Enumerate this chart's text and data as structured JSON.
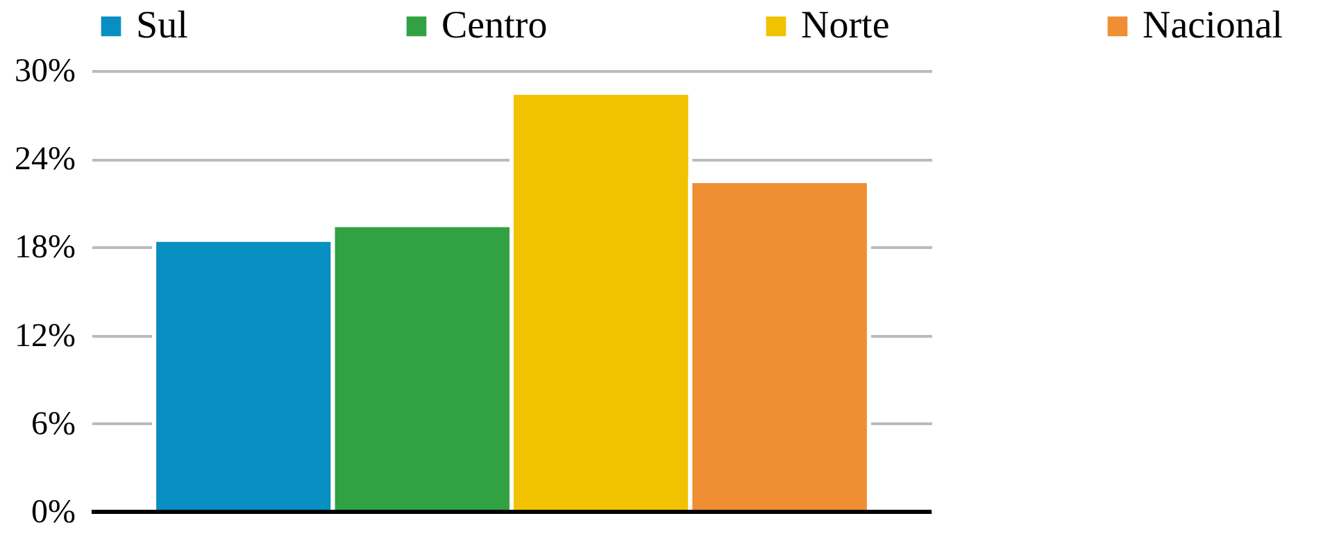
{
  "chart_data": {
    "type": "bar",
    "categories": [
      null
    ],
    "series": [
      {
        "name": "Sul",
        "color": "#088fc2",
        "values": [
          18.5
        ]
      },
      {
        "name": "Centro",
        "color": "#31a144",
        "values": [
          19.5
        ]
      },
      {
        "name": "Norte",
        "color": "#f1c200",
        "values": [
          28.5
        ]
      },
      {
        "name": "Nacional",
        "color": "#f08e33",
        "values": [
          22.5
        ]
      }
    ],
    "ylim": [
      0,
      30
    ],
    "yticks": [
      {
        "value": 0,
        "label": "0%"
      },
      {
        "value": 6,
        "label": "6%"
      },
      {
        "value": 12,
        "label": "12%"
      },
      {
        "value": 18,
        "label": "18%"
      },
      {
        "value": 24,
        "label": "24%"
      },
      {
        "value": 30,
        "label": "30%"
      }
    ],
    "grid": "y",
    "legend": "top"
  }
}
